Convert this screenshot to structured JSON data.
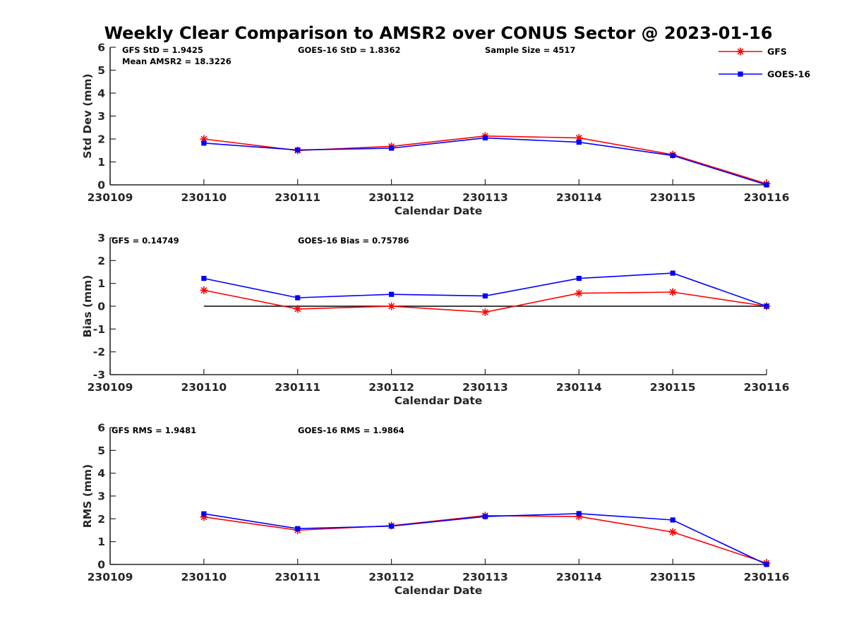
{
  "figure": {
    "title": "Weekly Clear Comparison to AMSR2 over CONUS Sector @ 2023-01-16"
  },
  "legend": {
    "placement": "top-right",
    "entries": [
      {
        "label": "GFS",
        "color": "#ff0000",
        "marker": "asterisk"
      },
      {
        "label": "GOES-16",
        "color": "#0000ff",
        "marker": "square"
      }
    ]
  },
  "chart_data": [
    {
      "type": "line",
      "xlabel": "Calendar Date",
      "ylabel": "Std Dev (mm)",
      "categories": [
        "230109",
        "230110",
        "230111",
        "230112",
        "230113",
        "230114",
        "230115",
        "230116"
      ],
      "ylim": [
        0,
        6
      ],
      "yticks": [
        "0",
        "1",
        "2",
        "3",
        "4",
        "5",
        "6"
      ],
      "grid": false,
      "reference_line": null,
      "annotations": [
        "GFS StD = 1.9425",
        "Mean AMSR2 = 18.3226",
        "GOES-16 StD = 1.8362",
        "Sample Size = 4517"
      ],
      "series": [
        {
          "name": "GFS",
          "color": "#ff0000",
          "marker": "asterisk",
          "x": [
            "230110",
            "230111",
            "230112",
            "230113",
            "230114",
            "230115",
            "230116"
          ],
          "values": [
            2.0,
            1.5,
            1.68,
            2.13,
            2.05,
            1.32,
            0.05
          ]
        },
        {
          "name": "GOES-16",
          "color": "#0000ff",
          "marker": "square",
          "x": [
            "230110",
            "230111",
            "230112",
            "230113",
            "230114",
            "230115",
            "230116"
          ],
          "values": [
            1.82,
            1.52,
            1.6,
            2.05,
            1.86,
            1.28,
            0.0
          ]
        }
      ]
    },
    {
      "type": "line",
      "xlabel": "Calendar Date",
      "ylabel": "Bias (mm)",
      "categories": [
        "230109",
        "230110",
        "230111",
        "230112",
        "230113",
        "230114",
        "230115",
        "230116"
      ],
      "ylim": [
        -3,
        3
      ],
      "yticks": [
        "-3",
        "-2",
        "-1",
        "0",
        "1",
        "2",
        "3"
      ],
      "grid": false,
      "reference_line": {
        "y": 0,
        "from": "230110",
        "to": "230116",
        "color": "#000000"
      },
      "annotations": [
        "GFS = 0.14749",
        "GOES-16 Bias  = 0.75786"
      ],
      "series": [
        {
          "name": "GFS",
          "color": "#ff0000",
          "marker": "asterisk",
          "x": [
            "230110",
            "230111",
            "230112",
            "230113",
            "230114",
            "230115",
            "230116"
          ],
          "values": [
            0.7,
            -0.12,
            0.0,
            -0.26,
            0.57,
            0.62,
            0.0
          ]
        },
        {
          "name": "GOES-16",
          "color": "#0000ff",
          "marker": "square",
          "x": [
            "230110",
            "230111",
            "230112",
            "230113",
            "230114",
            "230115",
            "230116"
          ],
          "values": [
            1.22,
            0.37,
            0.52,
            0.45,
            1.22,
            1.45,
            0.0
          ]
        }
      ]
    },
    {
      "type": "line",
      "xlabel": "Calendar Date",
      "ylabel": "RMS (mm)",
      "categories": [
        "230109",
        "230110",
        "230111",
        "230112",
        "230113",
        "230114",
        "230115",
        "230116"
      ],
      "ylim": [
        0,
        6
      ],
      "yticks": [
        "0",
        "1",
        "2",
        "3",
        "4",
        "5",
        "6"
      ],
      "grid": false,
      "reference_line": null,
      "annotations": [
        "GFS RMS = 1.9481",
        "GOES-16 RMS = 1.9864"
      ],
      "series": [
        {
          "name": "GFS",
          "color": "#ff0000",
          "marker": "asterisk",
          "x": [
            "230110",
            "230111",
            "230112",
            "230113",
            "230114",
            "230115",
            "230116"
          ],
          "values": [
            2.08,
            1.5,
            1.7,
            2.14,
            2.1,
            1.42,
            0.06
          ]
        },
        {
          "name": "GOES-16",
          "color": "#0000ff",
          "marker": "square",
          "x": [
            "230110",
            "230111",
            "230112",
            "230113",
            "230114",
            "230115",
            "230116"
          ],
          "values": [
            2.22,
            1.57,
            1.68,
            2.1,
            2.23,
            1.95,
            0.0
          ]
        }
      ]
    }
  ]
}
